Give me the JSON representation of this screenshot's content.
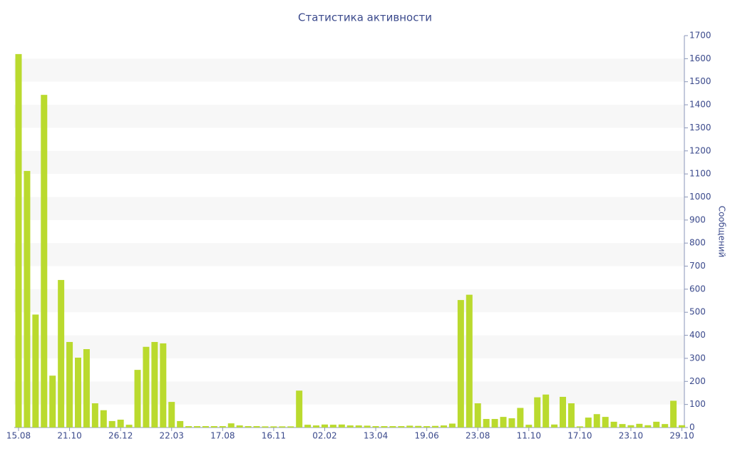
{
  "chart_data": {
    "type": "bar",
    "title": "Статистика активности",
    "y_label": "Сообщений",
    "y_axis_side": "right",
    "color": "#bada2e",
    "grid": "alternating-bands",
    "categories": [
      "15.08",
      null,
      null,
      null,
      null,
      null,
      "21.10",
      null,
      null,
      null,
      null,
      null,
      "26.12",
      null,
      null,
      null,
      null,
      null,
      "22.03",
      null,
      null,
      null,
      null,
      null,
      "17.08",
      null,
      null,
      null,
      null,
      null,
      "16.11",
      null,
      null,
      null,
      null,
      null,
      "02.02",
      null,
      null,
      null,
      null,
      null,
      "13.04",
      null,
      null,
      null,
      null,
      null,
      "19.06",
      null,
      null,
      null,
      null,
      null,
      "23.08",
      null,
      null,
      null,
      null,
      null,
      "11.10",
      null,
      null,
      null,
      null,
      null,
      "17.10",
      null,
      null,
      null,
      null,
      null,
      "23.10",
      null,
      null,
      null,
      null,
      null,
      "29.10"
    ],
    "values": [
      1620,
      1113,
      490,
      1443,
      225,
      640,
      371,
      303,
      340,
      105,
      75,
      28,
      34,
      12,
      250,
      350,
      371,
      365,
      111,
      28,
      6,
      6,
      6,
      6,
      6,
      18,
      9,
      6,
      6,
      5,
      5,
      5,
      5,
      160,
      12,
      9,
      13,
      12,
      13,
      9,
      9,
      8,
      6,
      6,
      6,
      6,
      8,
      7,
      6,
      7,
      9,
      17,
      553,
      576,
      105,
      37,
      37,
      46,
      40,
      85,
      12,
      131,
      143,
      13,
      133,
      105,
      5,
      43,
      58,
      46,
      25,
      15,
      10,
      16,
      10,
      25,
      15,
      116,
      10
    ],
    "ylim": [
      0,
      1700
    ],
    "yticks": [
      0,
      100,
      200,
      300,
      400,
      500,
      600,
      700,
      800,
      900,
      1000,
      1100,
      1200,
      1300,
      1400,
      1500,
      1600,
      1700
    ]
  }
}
